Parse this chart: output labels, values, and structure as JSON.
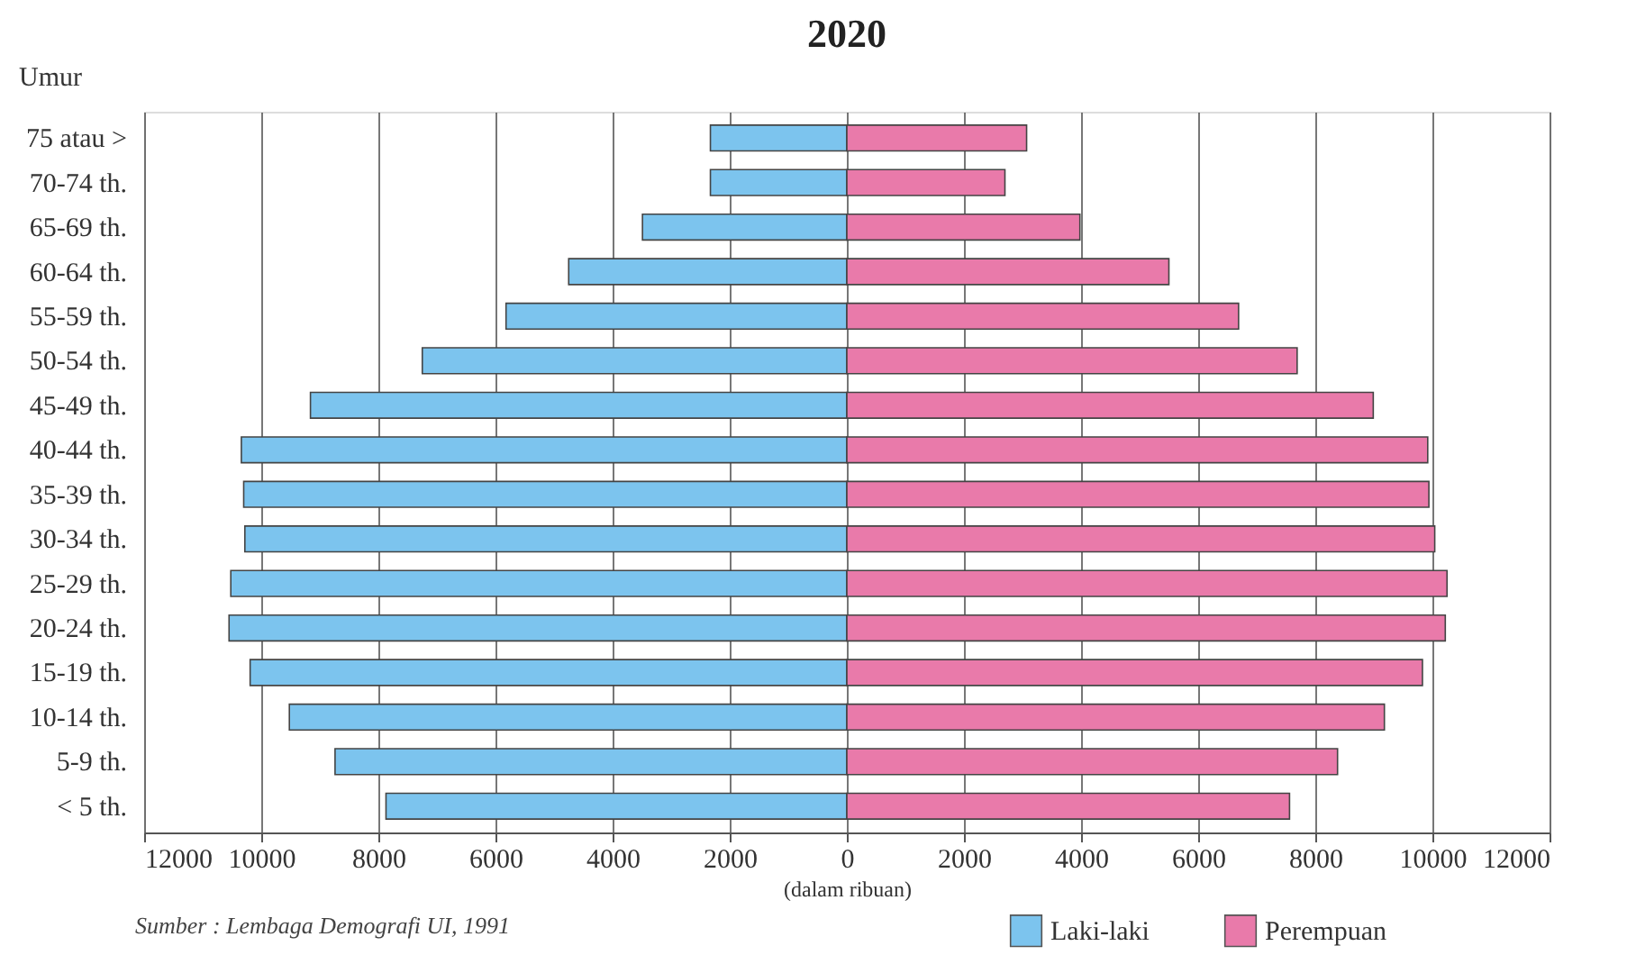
{
  "chart_data": {
    "type": "bar",
    "orientation": "horizontal",
    "title": "2020",
    "ylabel": "Umur",
    "xlabel": "(dalam ribuan)",
    "categories": [
      "75 atau >",
      "70-74 th.",
      "65-69 th.",
      "60-64 th.",
      "55-59 th.",
      "50-54 th.",
      "45-49 th.",
      "40-44 th.",
      "35-39 th.",
      "30-34 th.",
      "25-29 th.",
      "20-24 th.",
      "15-19 th.",
      "10-14 th.",
      "5-9 th.",
      "< 5 th."
    ],
    "series": [
      {
        "name": "Laki-laki",
        "color": "#7cc4ee",
        "values": [
          -2330,
          -2330,
          -3490,
          -4750,
          -5820,
          -7250,
          -9160,
          -10340,
          -10300,
          -10280,
          -10520,
          -10550,
          -10190,
          -9520,
          -8740,
          -7870
        ]
      },
      {
        "name": "Perempuan",
        "color": "#e97aaa",
        "values": [
          3070,
          2700,
          3980,
          5500,
          6690,
          7690,
          8990,
          9920,
          9940,
          10040,
          10250,
          10220,
          9830,
          9180,
          8380,
          7560
        ]
      }
    ],
    "xlim": [
      -12000,
      12000
    ],
    "xticks": [
      {
        "value": -12000,
        "label": "12000"
      },
      {
        "value": -10000,
        "label": "10000"
      },
      {
        "value": -8000,
        "label": "8000"
      },
      {
        "value": -6000,
        "label": "6000"
      },
      {
        "value": -4000,
        "label": "4000"
      },
      {
        "value": -2000,
        "label": "2000"
      },
      0,
      2000,
      4000,
      6000,
      8000,
      10000,
      12000
    ],
    "grid": "x",
    "legend": "bottom right",
    "stacked": true,
    "annotations": [
      "Sumber : Lembaga Demografi UI, 1991"
    ]
  }
}
